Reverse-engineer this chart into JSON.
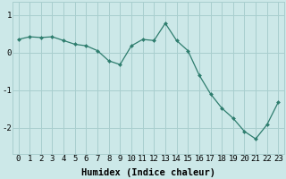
{
  "x": [
    0,
    1,
    2,
    3,
    4,
    5,
    6,
    7,
    8,
    9,
    10,
    11,
    12,
    13,
    14,
    15,
    16,
    17,
    18,
    19,
    20,
    21,
    22,
    23
  ],
  "y": [
    0.35,
    0.42,
    0.4,
    0.42,
    0.32,
    0.22,
    0.18,
    0.05,
    -0.22,
    -0.32,
    0.18,
    0.35,
    0.32,
    0.78,
    0.32,
    0.05,
    -0.6,
    -1.1,
    -1.48,
    -1.75,
    -2.1,
    -2.3,
    -1.92,
    -1.32
  ],
  "line_color": "#2e7d6e",
  "marker": "D",
  "marker_size": 2.0,
  "linewidth": 0.9,
  "bg_color": "#cce8e8",
  "grid_color": "#a8cece",
  "xlabel": "Humidex (Indice chaleur)",
  "xlabel_fontsize": 7.5,
  "tick_fontsize": 6.5,
  "xlim": [
    -0.5,
    23.5
  ],
  "ylim": [
    -2.7,
    1.35
  ],
  "yticks": [
    -2,
    -1,
    0,
    1
  ],
  "xticks": [
    0,
    1,
    2,
    3,
    4,
    5,
    6,
    7,
    8,
    9,
    10,
    11,
    12,
    13,
    14,
    15,
    16,
    17,
    18,
    19,
    20,
    21,
    22,
    23
  ]
}
